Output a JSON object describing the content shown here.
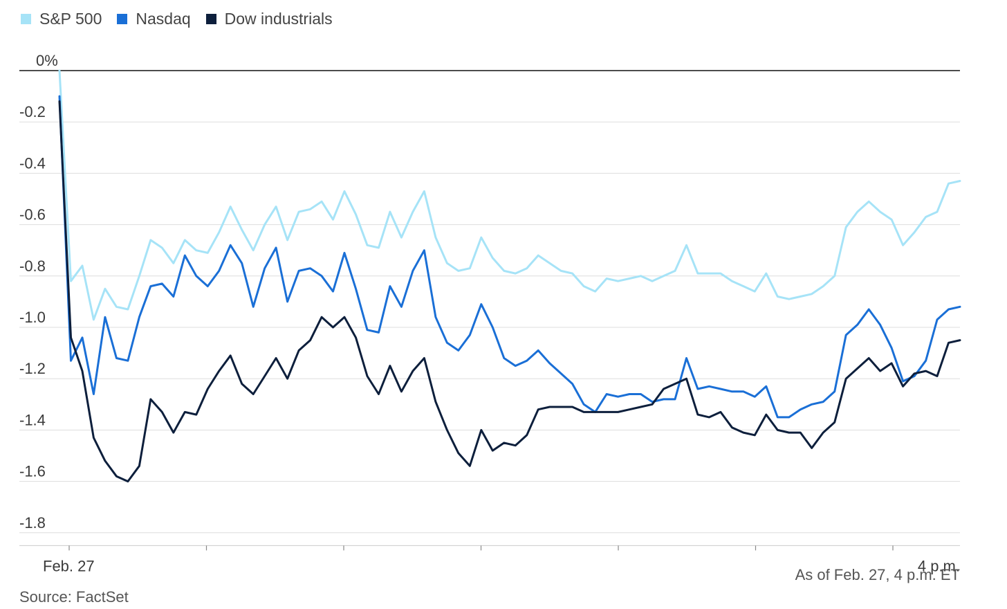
{
  "chart_data": {
    "type": "line",
    "title": "",
    "xlabel": "",
    "ylabel": "",
    "ylim": [
      -1.85,
      0.0
    ],
    "y_ticks": [
      {
        "value": 0,
        "label": "0%"
      },
      {
        "value": -0.2,
        "label": "-0.2"
      },
      {
        "value": -0.4,
        "label": "-0.4"
      },
      {
        "value": -0.6,
        "label": "-0.6"
      },
      {
        "value": -0.8,
        "label": "-0.8"
      },
      {
        "value": -1.0,
        "label": "-1.0"
      },
      {
        "value": -1.2,
        "label": "-1.2"
      },
      {
        "value": -1.4,
        "label": "-1.4"
      },
      {
        "value": -1.6,
        "label": "-1.6"
      },
      {
        "value": -1.8,
        "label": "-1.8"
      }
    ],
    "x_tick_labels": {
      "start": "Feb. 27",
      "end": "4 p.m."
    },
    "x_ticks_count": 7,
    "legend_position": "top-left",
    "grid": true,
    "series": [
      {
        "name": "S&P 500",
        "color": "#a6e3f7",
        "values": [
          0.0,
          -0.82,
          -0.76,
          -0.97,
          -0.85,
          -0.92,
          -0.93,
          -0.8,
          -0.66,
          -0.69,
          -0.75,
          -0.66,
          -0.7,
          -0.71,
          -0.63,
          -0.53,
          -0.62,
          -0.7,
          -0.6,
          -0.53,
          -0.66,
          -0.55,
          -0.54,
          -0.51,
          -0.58,
          -0.47,
          -0.56,
          -0.68,
          -0.69,
          -0.55,
          -0.65,
          -0.55,
          -0.47,
          -0.65,
          -0.75,
          -0.78,
          -0.77,
          -0.65,
          -0.73,
          -0.78,
          -0.79,
          -0.77,
          -0.72,
          -0.75,
          -0.78,
          -0.79,
          -0.84,
          -0.86,
          -0.81,
          -0.82,
          -0.81,
          -0.8,
          -0.82,
          -0.8,
          -0.78,
          -0.68,
          -0.79,
          -0.79,
          -0.79,
          -0.82,
          -0.84,
          -0.86,
          -0.79,
          -0.88,
          -0.89,
          -0.88,
          -0.87,
          -0.84,
          -0.8,
          -0.61,
          -0.55,
          -0.51,
          -0.55,
          -0.58,
          -0.68,
          -0.63,
          -0.57,
          -0.55,
          -0.44,
          -0.43
        ]
      },
      {
        "name": "Nasdaq",
        "color": "#1a6fd6",
        "values": [
          -0.1,
          -1.13,
          -1.04,
          -1.26,
          -0.96,
          -1.12,
          -1.13,
          -0.96,
          -0.84,
          -0.83,
          -0.88,
          -0.72,
          -0.8,
          -0.84,
          -0.78,
          -0.68,
          -0.75,
          -0.92,
          -0.77,
          -0.69,
          -0.9,
          -0.78,
          -0.77,
          -0.8,
          -0.86,
          -0.71,
          -0.85,
          -1.01,
          -1.02,
          -0.84,
          -0.92,
          -0.78,
          -0.7,
          -0.96,
          -1.06,
          -1.09,
          -1.03,
          -0.91,
          -1.0,
          -1.12,
          -1.15,
          -1.13,
          -1.09,
          -1.14,
          -1.18,
          -1.22,
          -1.3,
          -1.33,
          -1.26,
          -1.27,
          -1.26,
          -1.26,
          -1.29,
          -1.28,
          -1.28,
          -1.12,
          -1.24,
          -1.23,
          -1.24,
          -1.25,
          -1.25,
          -1.27,
          -1.23,
          -1.35,
          -1.35,
          -1.32,
          -1.3,
          -1.29,
          -1.25,
          -1.03,
          -0.99,
          -0.93,
          -0.99,
          -1.08,
          -1.21,
          -1.19,
          -1.13,
          -0.97,
          -0.93,
          -0.92
        ]
      },
      {
        "name": "Dow industrials",
        "color": "#0d1f3c",
        "values": [
          -0.12,
          -1.04,
          -1.17,
          -1.43,
          -1.52,
          -1.58,
          -1.6,
          -1.54,
          -1.28,
          -1.33,
          -1.41,
          -1.33,
          -1.34,
          -1.24,
          -1.17,
          -1.11,
          -1.22,
          -1.26,
          -1.19,
          -1.12,
          -1.2,
          -1.09,
          -1.05,
          -0.96,
          -1.0,
          -0.96,
          -1.04,
          -1.19,
          -1.26,
          -1.15,
          -1.25,
          -1.17,
          -1.12,
          -1.29,
          -1.4,
          -1.49,
          -1.54,
          -1.4,
          -1.48,
          -1.45,
          -1.46,
          -1.42,
          -1.32,
          -1.31,
          -1.31,
          -1.31,
          -1.33,
          -1.33,
          -1.33,
          -1.33,
          -1.32,
          -1.31,
          -1.3,
          -1.24,
          -1.22,
          -1.2,
          -1.34,
          -1.35,
          -1.33,
          -1.39,
          -1.41,
          -1.42,
          -1.34,
          -1.4,
          -1.41,
          -1.41,
          -1.47,
          -1.41,
          -1.37,
          -1.2,
          -1.16,
          -1.12,
          -1.17,
          -1.14,
          -1.23,
          -1.18,
          -1.17,
          -1.19,
          -1.06,
          -1.05
        ]
      }
    ]
  },
  "footer": {
    "as_of": "As of Feb. 27, 4 p.m. ET",
    "source": "Source: FactSet"
  }
}
